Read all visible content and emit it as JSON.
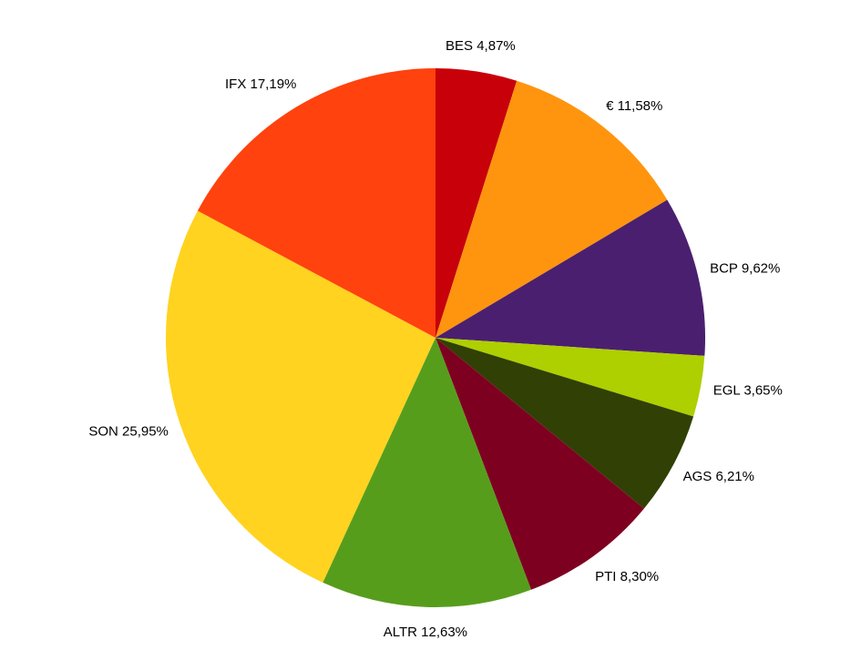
{
  "chart_data": {
    "type": "pie",
    "title": "",
    "start_angle_deg": 0,
    "direction": "clockwise",
    "slices": [
      {
        "label": "BES",
        "value": 4.87,
        "display": "BES 4,87%",
        "color": "#c8000a"
      },
      {
        "label": "€",
        "value": 11.58,
        "display": "€ 11,58%",
        "color": "#ff950e"
      },
      {
        "label": "BCP",
        "value": 9.62,
        "display": "BCP 9,62%",
        "color": "#4b1f6f"
      },
      {
        "label": "EGL",
        "value": 3.65,
        "display": "EGL 3,65%",
        "color": "#aecf00"
      },
      {
        "label": "AGS",
        "value": 6.21,
        "display": "AGS 6,21%",
        "color": "#314004"
      },
      {
        "label": "PTI",
        "value": 8.3,
        "display": "PTI 8,30%",
        "color": "#7e0021"
      },
      {
        "label": "ALTR",
        "value": 12.63,
        "display": "ALTR 12,63%",
        "color": "#579d1c"
      },
      {
        "label": "SON",
        "value": 25.95,
        "display": "SON 25,95%",
        "color": "#ffd320"
      },
      {
        "label": "IFX",
        "value": 17.19,
        "display": "IFX 17,19%",
        "color": "#ff420e"
      }
    ]
  }
}
